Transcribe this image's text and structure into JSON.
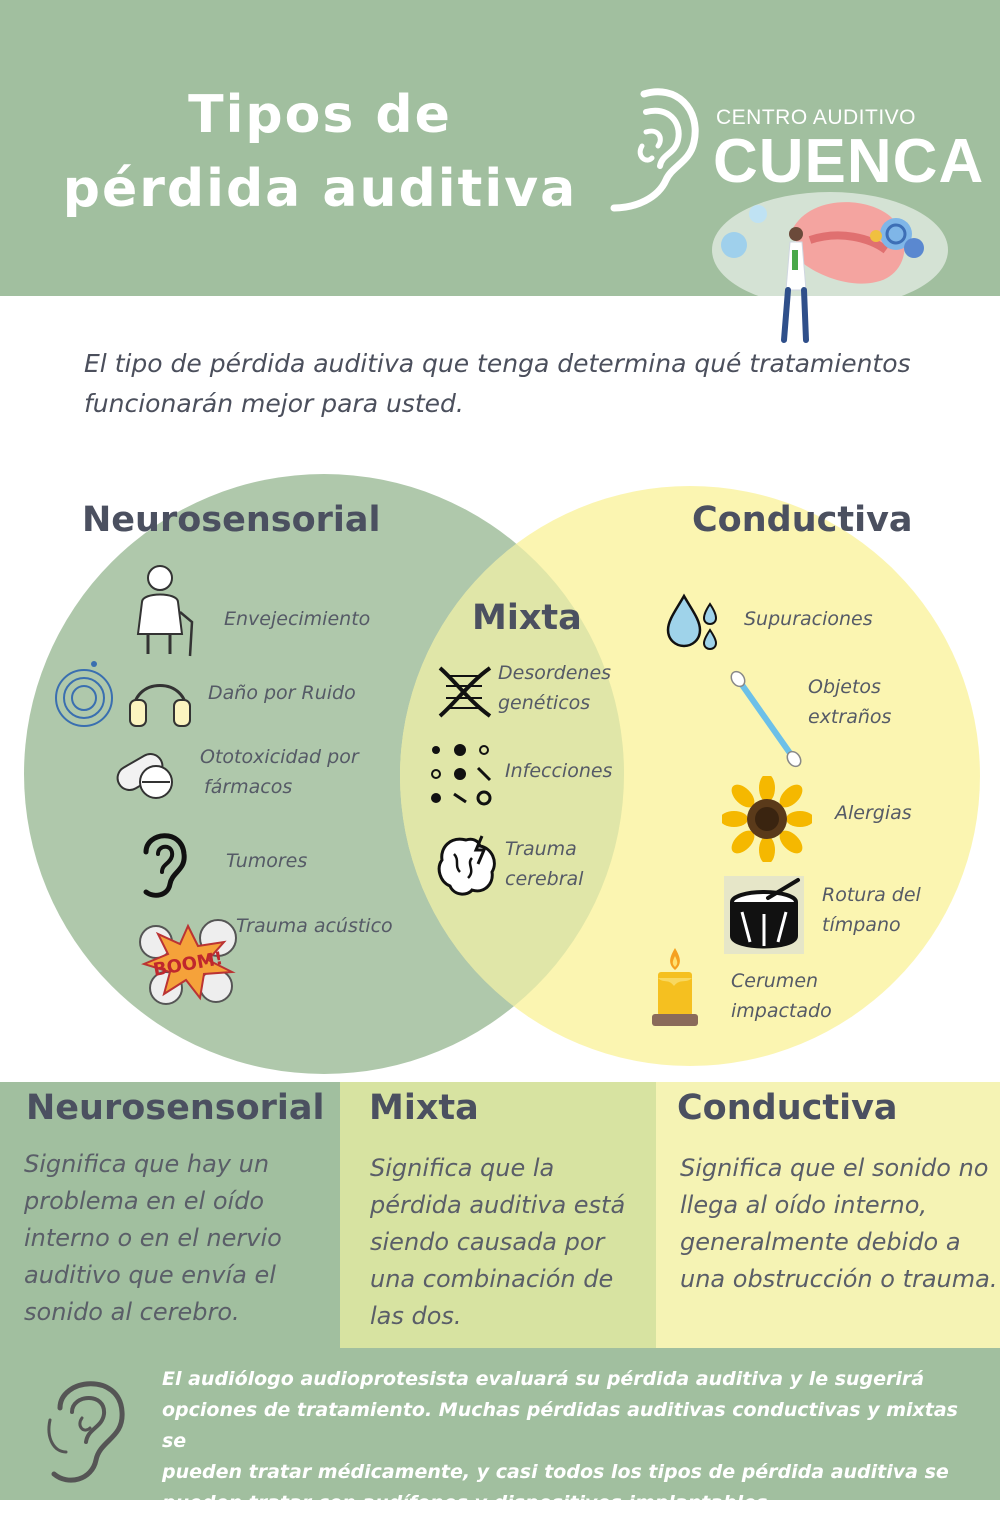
{
  "header": {
    "title_line1": "Tipos de",
    "title_line2": "pérdida auditiva",
    "brand_top": "CENTRO AUDITIVO",
    "brand_main": "CUENCA"
  },
  "intro": "El tipo de pérdida auditiva que tenga determina qué tratamientos funcionarán mejor para usted.",
  "venn": {
    "neurosensorial": {
      "title": "Neurosensorial",
      "items": [
        {
          "label": "Envejecimiento",
          "icon": "elderly-person-icon"
        },
        {
          "label": "Daño por Ruido",
          "icon": "headphones-icon"
        },
        {
          "label": "Ototoxicidad por",
          "label2": "fármacos",
          "icon": "pills-icon"
        },
        {
          "label": "Tumores",
          "icon": "ear-icon"
        },
        {
          "label": "Trauma acústico",
          "icon": "boom-explosion-icon"
        }
      ]
    },
    "mixta": {
      "title": "Mixta",
      "items": [
        {
          "label": "Desordenes",
          "label2": "genéticos",
          "icon": "dna-icon"
        },
        {
          "label": "Infecciones",
          "icon": "microbes-icon"
        },
        {
          "label": "Trauma",
          "label2": "cerebral",
          "icon": "brain-icon"
        }
      ]
    },
    "conductiva": {
      "title": "Conductiva",
      "items": [
        {
          "label": "Supuraciones",
          "icon": "water-drops-icon"
        },
        {
          "label": "Objetos",
          "label2": "extraños",
          "icon": "cotton-swab-icon"
        },
        {
          "label": "Alergias",
          "icon": "sunflower-icon"
        },
        {
          "label": "Rotura del",
          "label2": "tímpano",
          "icon": "drum-icon"
        },
        {
          "label": "Cerumen",
          "label2": "impactado",
          "icon": "candle-icon"
        }
      ]
    },
    "colors": {
      "neuro": "#a6c2a2",
      "conduct": "#fbf4a8",
      "overlap": "#e0e6a8"
    }
  },
  "panels": {
    "neurosensorial": {
      "title": "Neurosensorial",
      "lines": [
        "Significa que hay un",
        "problema en el oído",
        "interno o en el nervio",
        "auditivo que envía el",
        "sonido al cerebro."
      ]
    },
    "mixta": {
      "title": "Mixta",
      "lines": [
        "Significa que la",
        "pérdida auditiva está",
        "siendo causada por",
        "una combinación de",
        "las dos."
      ]
    },
    "conductiva": {
      "title": "Conductiva",
      "lines": [
        "Significa que el sonido no",
        "llega al oído interno,",
        "generalmente debido a",
        "una obstrucción o trauma."
      ]
    }
  },
  "footer": {
    "lines": [
      "El audiólogo audioprotesista evaluará su pérdida auditiva y le sugerirá",
      "opciones de tratamiento.  Muchas pérdidas auditivas conductivas y mixtas se",
      "pueden tratar médicamente, y casi todos los tipos de pérdida auditiva se",
      "pueden tratar con audífonos y dispositivos implantables."
    ]
  }
}
